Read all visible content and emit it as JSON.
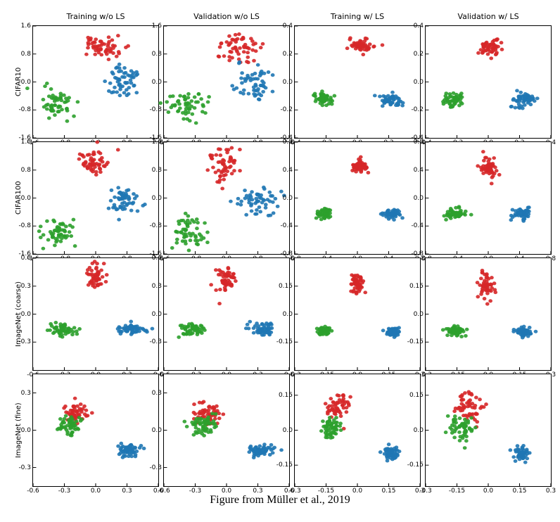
{
  "caption": "Figure from Müller et al., 2019",
  "colors": {
    "red": "#d62728",
    "green": "#2ca02c",
    "blue": "#1f77b4",
    "axis": "#000000",
    "background": "#ffffff"
  },
  "marker_size": 2.4,
  "marker_opacity": 0.9,
  "col_labels": [
    "Training w/o LS",
    "Validation w/o LS",
    "Training w/ LS",
    "Validation w/ LS"
  ],
  "row_labels": [
    "CIFAR10",
    "CIFAR100",
    "ImageNet (coarse)",
    "ImageNet (fine)"
  ],
  "panels": [
    {
      "row": 0,
      "col": 0,
      "xlim": [
        -1.6,
        1.6
      ],
      "ylim": [
        -1.6,
        1.6
      ],
      "xticks": [
        -1.6,
        -0.8,
        0.0,
        0.8,
        1.6
      ],
      "yticks": [
        -1.6,
        -0.8,
        0.0,
        0.8,
        1.6
      ],
      "series": [
        {
          "color_key": "red",
          "cluster": {
            "cx": 0.15,
            "cy": 1.0,
            "sx": 0.45,
            "sy": 0.35,
            "n": 55
          }
        },
        {
          "color_key": "green",
          "cluster": {
            "cx": -1.0,
            "cy": -0.6,
            "sx": 0.45,
            "sy": 0.4,
            "n": 55
          }
        },
        {
          "color_key": "blue",
          "cluster": {
            "cx": 0.65,
            "cy": 0.0,
            "sx": 0.45,
            "sy": 0.5,
            "n": 55
          }
        }
      ]
    },
    {
      "row": 0,
      "col": 1,
      "xlim": [
        -1.6,
        1.6
      ],
      "ylim": [
        -1.6,
        1.6
      ],
      "xticks": [
        -1.6,
        -0.8,
        0.0,
        0.8,
        1.6
      ],
      "yticks": [
        -1.6,
        -0.8,
        0.0,
        0.8,
        1.6
      ],
      "series": [
        {
          "color_key": "red",
          "cluster": {
            "cx": 0.2,
            "cy": 0.95,
            "sx": 0.55,
            "sy": 0.4,
            "n": 55
          }
        },
        {
          "color_key": "green",
          "cluster": {
            "cx": -0.95,
            "cy": -0.7,
            "sx": 0.5,
            "sy": 0.45,
            "n": 55
          }
        },
        {
          "color_key": "blue",
          "cluster": {
            "cx": 0.7,
            "cy": -0.05,
            "sx": 0.5,
            "sy": 0.55,
            "n": 55
          }
        }
      ]
    },
    {
      "row": 0,
      "col": 2,
      "xlim": [
        -0.4,
        0.4
      ],
      "ylim": [
        -0.4,
        0.4
      ],
      "xticks": [
        -0.4,
        -0.2,
        0.0,
        0.2,
        0.4
      ],
      "yticks": [
        -0.4,
        -0.2,
        0.0,
        0.2,
        0.4
      ],
      "series": [
        {
          "color_key": "red",
          "cluster": {
            "cx": 0.02,
            "cy": 0.26,
            "sx": 0.07,
            "sy": 0.05,
            "n": 55
          }
        },
        {
          "color_key": "green",
          "cluster": {
            "cx": -0.22,
            "cy": -0.12,
            "sx": 0.06,
            "sy": 0.05,
            "n": 55
          }
        },
        {
          "color_key": "blue",
          "cluster": {
            "cx": 0.22,
            "cy": -0.13,
            "sx": 0.07,
            "sy": 0.05,
            "n": 55
          }
        }
      ]
    },
    {
      "row": 0,
      "col": 3,
      "xlim": [
        -0.4,
        0.4
      ],
      "ylim": [
        -0.4,
        0.4
      ],
      "xticks": [
        -0.4,
        -0.2,
        0.0,
        0.2,
        0.4
      ],
      "yticks": [
        -0.4,
        -0.2,
        0.0,
        0.2,
        0.4
      ],
      "series": [
        {
          "color_key": "red",
          "cluster": {
            "cx": 0.02,
            "cy": 0.25,
            "sx": 0.08,
            "sy": 0.06,
            "n": 55
          }
        },
        {
          "color_key": "green",
          "cluster": {
            "cx": -0.22,
            "cy": -0.12,
            "sx": 0.07,
            "sy": 0.06,
            "n": 55
          }
        },
        {
          "color_key": "blue",
          "cluster": {
            "cx": 0.22,
            "cy": -0.13,
            "sx": 0.08,
            "sy": 0.06,
            "n": 55
          }
        }
      ]
    },
    {
      "row": 1,
      "col": 0,
      "xlim": [
        -1.6,
        1.6
      ],
      "ylim": [
        -1.6,
        1.6
      ],
      "xticks": [
        -1.6,
        -0.8,
        0.0,
        0.8,
        1.6
      ],
      "yticks": [
        -1.6,
        -0.8,
        0.0,
        0.8,
        1.6
      ],
      "series": [
        {
          "color_key": "red",
          "cluster": {
            "cx": -0.05,
            "cy": 1.0,
            "sx": 0.35,
            "sy": 0.4,
            "n": 55
          }
        },
        {
          "color_key": "green",
          "cluster": {
            "cx": -1.0,
            "cy": -1.0,
            "sx": 0.4,
            "sy": 0.4,
            "n": 55
          }
        },
        {
          "color_key": "blue",
          "cluster": {
            "cx": 0.7,
            "cy": -0.05,
            "sx": 0.4,
            "sy": 0.35,
            "n": 55
          }
        }
      ]
    },
    {
      "row": 1,
      "col": 1,
      "xlim": [
        -1.6,
        1.6
      ],
      "ylim": [
        -1.6,
        1.6
      ],
      "xticks": [
        -1.6,
        -0.8,
        0.0,
        0.8,
        1.6
      ],
      "yticks": [
        -1.6,
        -0.8,
        0.0,
        0.8,
        1.6
      ],
      "series": [
        {
          "color_key": "red",
          "cluster": {
            "cx": -0.05,
            "cy": 0.9,
            "sx": 0.4,
            "sy": 0.5,
            "n": 55
          }
        },
        {
          "color_key": "green",
          "cluster": {
            "cx": -1.0,
            "cy": -1.0,
            "sx": 0.45,
            "sy": 0.45,
            "n": 55
          }
        },
        {
          "color_key": "blue",
          "cluster": {
            "cx": 0.75,
            "cy": -0.1,
            "sx": 0.45,
            "sy": 0.4,
            "n": 55
          }
        }
      ]
    },
    {
      "row": 1,
      "col": 2,
      "xlim": [
        -0.8,
        0.8
      ],
      "ylim": [
        -0.8,
        0.8
      ],
      "xticks": [
        -0.8,
        -0.4,
        0.0,
        0.4,
        0.8
      ],
      "yticks": [
        -0.8,
        -0.4,
        0.0,
        0.4,
        0.8
      ],
      "series": [
        {
          "color_key": "red",
          "cluster": {
            "cx": 0.03,
            "cy": 0.45,
            "sx": 0.1,
            "sy": 0.1,
            "n": 55
          }
        },
        {
          "color_key": "green",
          "cluster": {
            "cx": -0.42,
            "cy": -0.22,
            "sx": 0.09,
            "sy": 0.07,
            "n": 55
          }
        },
        {
          "color_key": "blue",
          "cluster": {
            "cx": 0.44,
            "cy": -0.22,
            "sx": 0.1,
            "sy": 0.07,
            "n": 55
          }
        }
      ]
    },
    {
      "row": 1,
      "col": 3,
      "xlim": [
        -0.8,
        0.8
      ],
      "ylim": [
        -0.8,
        0.8
      ],
      "xticks": [
        -0.8,
        -0.4,
        0.0,
        0.4,
        0.8
      ],
      "yticks": [
        -0.8,
        -0.4,
        0.0,
        0.4,
        0.8
      ],
      "series": [
        {
          "color_key": "red",
          "cluster": {
            "cx": 0.02,
            "cy": 0.43,
            "sx": 0.12,
            "sy": 0.15,
            "n": 55
          }
        },
        {
          "color_key": "green",
          "cluster": {
            "cx": -0.42,
            "cy": -0.22,
            "sx": 0.12,
            "sy": 0.08,
            "n": 55
          }
        },
        {
          "color_key": "blue",
          "cluster": {
            "cx": 0.44,
            "cy": -0.22,
            "sx": 0.12,
            "sy": 0.08,
            "n": 55
          }
        }
      ]
    },
    {
      "row": 2,
      "col": 0,
      "xlim": [
        -0.6,
        0.6
      ],
      "ylim": [
        -0.6,
        0.6
      ],
      "xticks": [
        -0.6,
        -0.3,
        0.0,
        0.3,
        0.6
      ],
      "yticks": [
        -0.3,
        0.0,
        0.3,
        0.6
      ],
      "series": [
        {
          "color_key": "red",
          "cluster": {
            "cx": 0.0,
            "cy": 0.4,
            "sx": 0.08,
            "sy": 0.12,
            "n": 55
          }
        },
        {
          "color_key": "green",
          "cluster": {
            "cx": -0.32,
            "cy": -0.16,
            "sx": 0.12,
            "sy": 0.06,
            "n": 55
          }
        },
        {
          "color_key": "blue",
          "cluster": {
            "cx": 0.35,
            "cy": -0.16,
            "sx": 0.12,
            "sy": 0.06,
            "n": 55
          }
        }
      ]
    },
    {
      "row": 2,
      "col": 1,
      "xlim": [
        -0.6,
        0.6
      ],
      "ylim": [
        -0.6,
        0.6
      ],
      "xticks": [
        -0.6,
        -0.3,
        0.0,
        0.3,
        0.6
      ],
      "yticks": [
        -0.3,
        0.0,
        0.3,
        0.6
      ],
      "series": [
        {
          "color_key": "red",
          "cluster": {
            "cx": 0.0,
            "cy": 0.35,
            "sx": 0.1,
            "sy": 0.14,
            "n": 55
          }
        },
        {
          "color_key": "green",
          "cluster": {
            "cx": -0.32,
            "cy": -0.16,
            "sx": 0.14,
            "sy": 0.07,
            "n": 55
          }
        },
        {
          "color_key": "blue",
          "cluster": {
            "cx": 0.35,
            "cy": -0.16,
            "sx": 0.14,
            "sy": 0.07,
            "n": 55
          }
        }
      ]
    },
    {
      "row": 2,
      "col": 2,
      "xlim": [
        -0.3,
        0.3
      ],
      "ylim": [
        -0.3,
        0.3
      ],
      "xticks": [
        -0.3,
        -0.15,
        0.0,
        0.15,
        0.3
      ],
      "yticks": [
        -0.15,
        0.0,
        0.15
      ],
      "series": [
        {
          "color_key": "red",
          "cluster": {
            "cx": 0.0,
            "cy": 0.16,
            "sx": 0.03,
            "sy": 0.05,
            "n": 55
          }
        },
        {
          "color_key": "green",
          "cluster": {
            "cx": -0.16,
            "cy": -0.09,
            "sx": 0.03,
            "sy": 0.02,
            "n": 55
          }
        },
        {
          "color_key": "blue",
          "cluster": {
            "cx": 0.17,
            "cy": -0.095,
            "sx": 0.03,
            "sy": 0.02,
            "n": 55
          }
        }
      ]
    },
    {
      "row": 2,
      "col": 3,
      "xlim": [
        -0.3,
        0.3
      ],
      "ylim": [
        -0.3,
        0.3
      ],
      "xticks": [
        -0.3,
        -0.15,
        0.0,
        0.15,
        0.3
      ],
      "yticks": [
        -0.15,
        0.0,
        0.15
      ],
      "series": [
        {
          "color_key": "red",
          "cluster": {
            "cx": -0.01,
            "cy": 0.15,
            "sx": 0.04,
            "sy": 0.07,
            "n": 55
          }
        },
        {
          "color_key": "green",
          "cluster": {
            "cx": -0.16,
            "cy": -0.09,
            "sx": 0.04,
            "sy": 0.025,
            "n": 55
          }
        },
        {
          "color_key": "blue",
          "cluster": {
            "cx": 0.17,
            "cy": -0.095,
            "sx": 0.04,
            "sy": 0.025,
            "n": 55
          }
        }
      ]
    },
    {
      "row": 3,
      "col": 0,
      "xlim": [
        -0.6,
        0.6
      ],
      "ylim": [
        -0.45,
        0.45
      ],
      "xticks": [
        -0.6,
        -0.3,
        0.0,
        0.3,
        0.6
      ],
      "yticks": [
        -0.3,
        0.0,
        0.3
      ],
      "series": [
        {
          "color_key": "red",
          "cluster": {
            "cx": -0.2,
            "cy": 0.14,
            "sx": 0.12,
            "sy": 0.09,
            "n": 55
          }
        },
        {
          "color_key": "green",
          "cluster": {
            "cx": -0.24,
            "cy": 0.04,
            "sx": 0.11,
            "sy": 0.07,
            "n": 55
          }
        },
        {
          "color_key": "blue",
          "cluster": {
            "cx": 0.32,
            "cy": -0.16,
            "sx": 0.12,
            "sy": 0.05,
            "n": 55
          }
        }
      ]
    },
    {
      "row": 3,
      "col": 1,
      "xlim": [
        -0.6,
        0.6
      ],
      "ylim": [
        -0.45,
        0.45
      ],
      "xticks": [
        -0.6,
        -0.3,
        0.0,
        0.3,
        0.6
      ],
      "yticks": [
        -0.3,
        0.0,
        0.3
      ],
      "series": [
        {
          "color_key": "red",
          "cluster": {
            "cx": -0.18,
            "cy": 0.13,
            "sx": 0.14,
            "sy": 0.1,
            "n": 55
          }
        },
        {
          "color_key": "green",
          "cluster": {
            "cx": -0.22,
            "cy": 0.03,
            "sx": 0.13,
            "sy": 0.08,
            "n": 55
          }
        },
        {
          "color_key": "blue",
          "cluster": {
            "cx": 0.32,
            "cy": -0.16,
            "sx": 0.13,
            "sy": 0.06,
            "n": 55
          }
        }
      ]
    },
    {
      "row": 3,
      "col": 2,
      "xlim": [
        -0.3,
        0.3
      ],
      "ylim": [
        -0.24,
        0.24
      ],
      "xticks": [
        -0.3,
        -0.15,
        0.0,
        0.15,
        0.3
      ],
      "yticks": [
        -0.15,
        0.0,
        0.15
      ],
      "series": [
        {
          "color_key": "red",
          "cluster": {
            "cx": -0.095,
            "cy": 0.1,
            "sx": 0.06,
            "sy": 0.06,
            "n": 55
          }
        },
        {
          "color_key": "green",
          "cluster": {
            "cx": -0.13,
            "cy": 0.01,
            "sx": 0.055,
            "sy": 0.045,
            "n": 55
          }
        },
        {
          "color_key": "blue",
          "cluster": {
            "cx": 0.16,
            "cy": -0.1,
            "sx": 0.035,
            "sy": 0.025,
            "n": 55
          }
        }
      ]
    },
    {
      "row": 3,
      "col": 3,
      "xlim": [
        -0.3,
        0.3
      ],
      "ylim": [
        -0.24,
        0.24
      ],
      "xticks": [
        -0.3,
        -0.15,
        0.0,
        0.15,
        0.3
      ],
      "yticks": [
        -0.15,
        0.0,
        0.15
      ],
      "series": [
        {
          "color_key": "red",
          "cluster": {
            "cx": -0.095,
            "cy": 0.1,
            "sx": 0.065,
            "sy": 0.065,
            "n": 55
          }
        },
        {
          "color_key": "green",
          "cluster": {
            "cx": -0.13,
            "cy": 0.01,
            "sx": 0.06,
            "sy": 0.05,
            "n": 55
          }
        },
        {
          "color_key": "blue",
          "cluster": {
            "cx": 0.16,
            "cy": -0.1,
            "sx": 0.04,
            "sy": 0.03,
            "n": 55
          }
        }
      ]
    }
  ]
}
